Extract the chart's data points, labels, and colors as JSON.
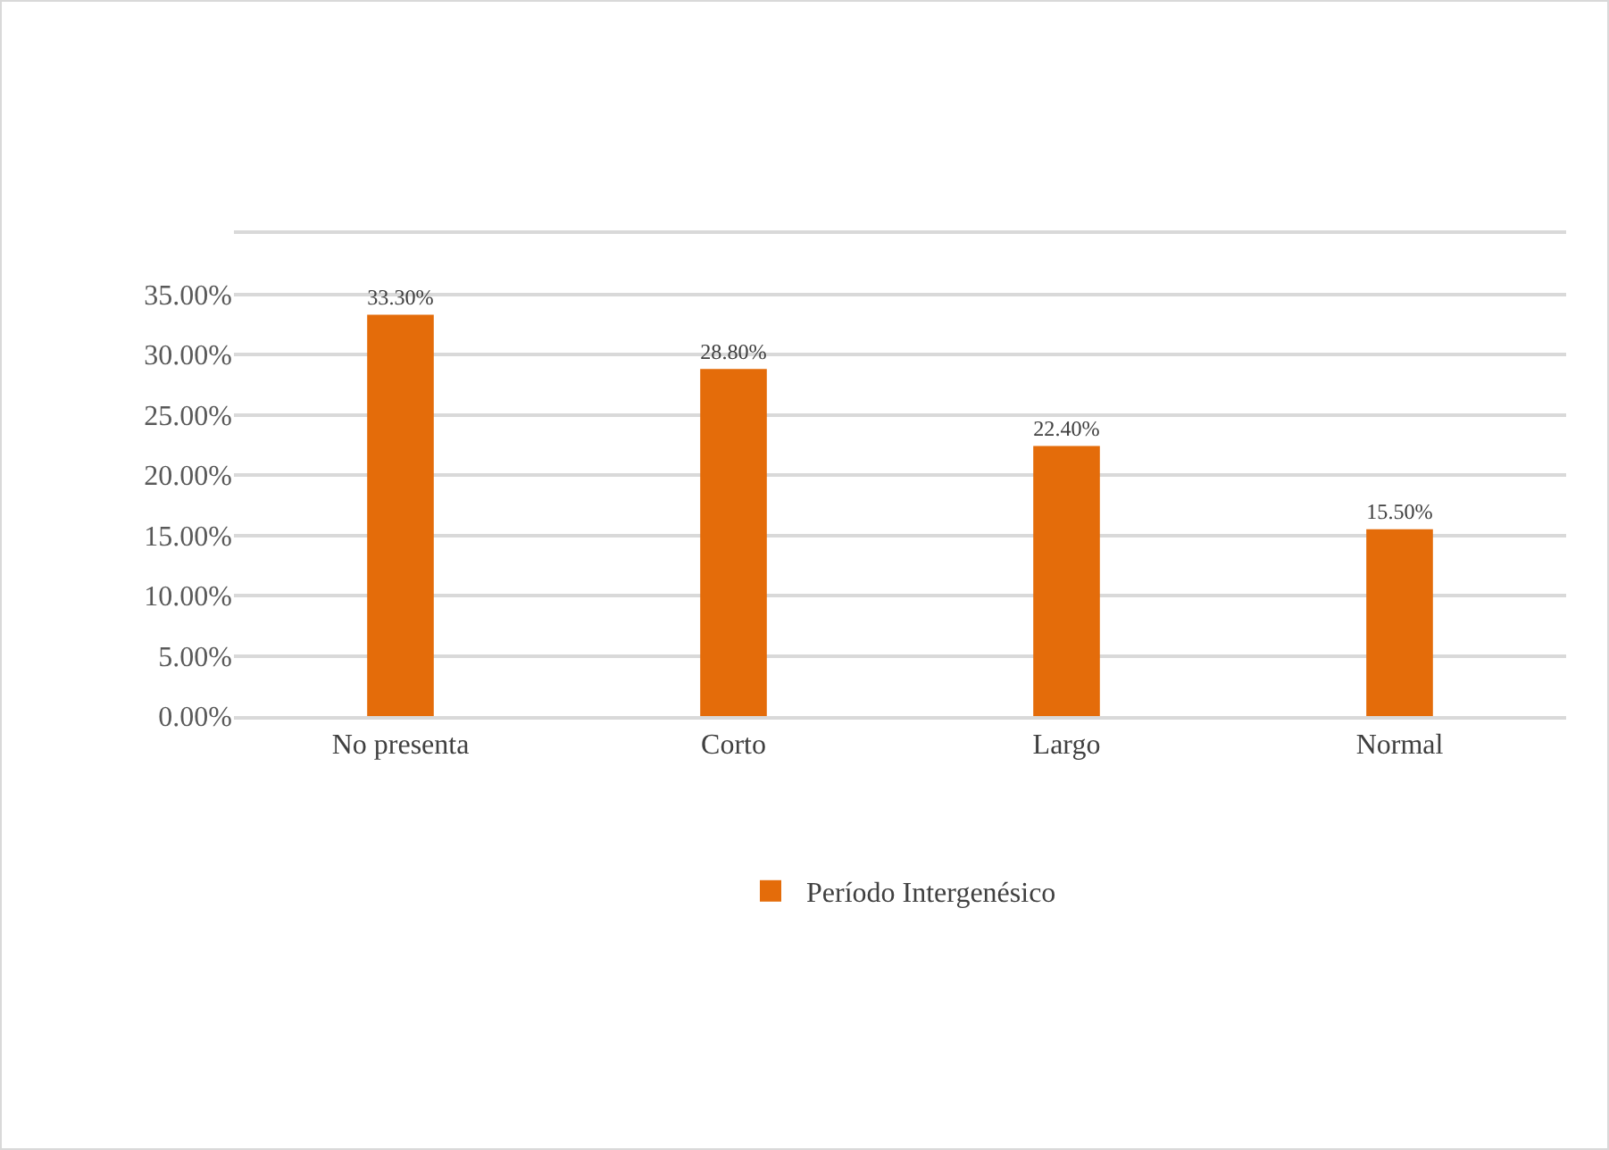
{
  "chart_data": {
    "type": "bar",
    "categories": [
      "No presenta",
      "Corto",
      "Largo",
      "Normal"
    ],
    "series": [
      {
        "name": "Período Intergenésico",
        "color": "#e46c0a",
        "values": [
          33.3,
          28.8,
          22.4,
          15.5
        ],
        "value_labels": [
          "33.30%",
          "28.80%",
          "22.40%",
          "15.50%"
        ]
      }
    ],
    "ylim": [
      0,
      40
    ],
    "yticks": [
      {
        "value": 0,
        "label": "0.00%"
      },
      {
        "value": 5,
        "label": "5.00%"
      },
      {
        "value": 10,
        "label": "10.00%"
      },
      {
        "value": 15,
        "label": "15.00%"
      },
      {
        "value": 20,
        "label": "20.00%"
      },
      {
        "value": 25,
        "label": "25.00%"
      },
      {
        "value": 30,
        "label": "30.00%"
      },
      {
        "value": 35,
        "label": "35.00%"
      },
      {
        "value": 40,
        "label": null
      }
    ],
    "grid": "y",
    "legend": "bottom"
  }
}
